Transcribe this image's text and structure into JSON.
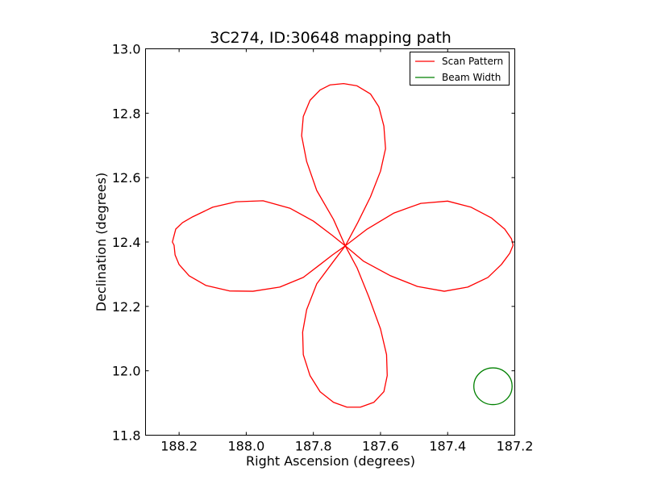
{
  "chart_data": {
    "type": "line",
    "title": "3C274, ID:30648 mapping path",
    "xlabel": "Right Ascension (degrees)",
    "ylabel": "Declination (degrees)",
    "xlim": [
      188.3,
      187.2
    ],
    "ylim": [
      11.8,
      13.0
    ],
    "x_inverted": true,
    "xticks": [
      188.2,
      188.0,
      187.8,
      187.6,
      187.4,
      187.2
    ],
    "xtick_labels": [
      "188.2",
      "188.0",
      "187.8",
      "187.6",
      "187.4",
      "187.2"
    ],
    "yticks": [
      11.8,
      12.0,
      12.2,
      12.4,
      12.6,
      12.8,
      13.0
    ],
    "ytick_labels": [
      "11.8",
      "12.0",
      "12.2",
      "12.4",
      "12.6",
      "12.8",
      "13.0"
    ],
    "grid": false,
    "legend_position": "top-right",
    "series": [
      {
        "name": "Scan Pattern",
        "color": "#ff0000",
        "kind": "line",
        "center": [
          187.705,
          12.388
        ],
        "x": [
          187.705,
          187.743,
          187.8,
          187.87,
          187.95,
          188.03,
          188.1,
          188.16,
          188.19,
          188.21,
          188.22,
          188.215,
          188.212,
          188.2,
          188.17,
          188.12,
          188.05,
          187.98,
          187.9,
          187.83,
          187.78,
          187.743,
          187.705,
          187.74,
          187.79,
          187.82,
          187.835,
          187.83,
          187.81,
          187.78,
          187.75,
          187.71,
          187.67,
          187.63,
          187.605,
          187.59,
          187.585,
          187.6,
          187.63,
          187.668,
          187.705,
          187.65,
          187.57,
          187.49,
          187.41,
          187.34,
          187.28,
          187.24,
          187.215,
          187.205,
          187.21,
          187.23,
          187.27,
          187.33,
          187.4,
          187.48,
          187.56,
          187.64,
          187.705,
          187.67,
          187.635,
          187.6,
          187.582,
          187.58,
          187.59,
          187.62,
          187.66,
          187.7,
          187.74,
          187.78,
          187.81,
          187.83,
          187.832,
          187.82,
          187.79,
          187.74,
          187.705
        ],
        "y": [
          12.388,
          12.42,
          12.465,
          12.505,
          12.528,
          12.525,
          12.508,
          12.478,
          12.46,
          12.44,
          12.4,
          12.39,
          12.36,
          12.33,
          12.295,
          12.265,
          12.248,
          12.247,
          12.26,
          12.29,
          12.33,
          12.36,
          12.388,
          12.47,
          12.56,
          12.65,
          12.73,
          12.79,
          12.84,
          12.872,
          12.888,
          12.892,
          12.885,
          12.86,
          12.82,
          12.76,
          12.69,
          12.62,
          12.54,
          12.46,
          12.388,
          12.34,
          12.295,
          12.262,
          12.247,
          12.26,
          12.29,
          12.33,
          12.365,
          12.39,
          12.41,
          12.44,
          12.475,
          12.508,
          12.527,
          12.52,
          12.49,
          12.44,
          12.388,
          12.32,
          12.23,
          12.13,
          12.05,
          11.985,
          11.935,
          11.902,
          11.887,
          11.887,
          11.902,
          11.935,
          11.985,
          12.05,
          12.12,
          12.19,
          12.27,
          12.34,
          12.388
        ]
      },
      {
        "name": "Beam Width",
        "color": "#008000",
        "kind": "circle",
        "center": [
          187.265,
          11.952
        ],
        "radius": 0.057
      }
    ]
  }
}
